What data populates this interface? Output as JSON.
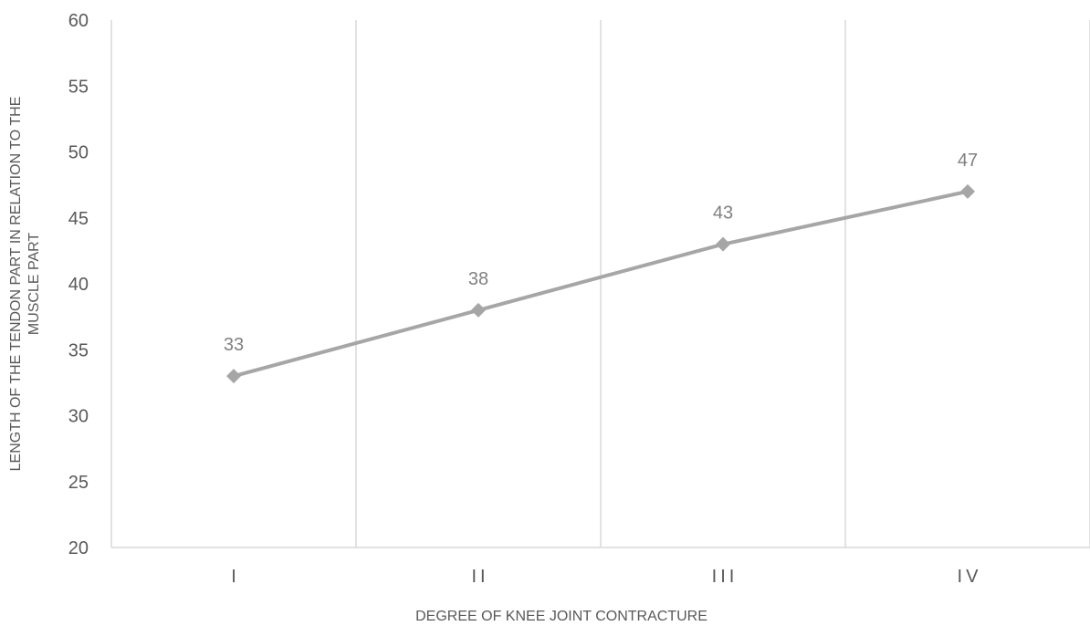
{
  "chart_data": {
    "type": "line",
    "categories": [
      "I",
      "II",
      "III",
      "IV"
    ],
    "series": [
      {
        "values": [
          33,
          38,
          43,
          47
        ]
      }
    ],
    "data_labels": [
      "33",
      "38",
      "43",
      "47"
    ],
    "xlabel": "DEGREE OF KNEE JOINT CONTRACTURE",
    "ylabel": "LENGTH OF THE TENDON PART IN RELATION TO THE MUSCLE PART",
    "ylim": [
      20,
      60
    ],
    "yticks": [
      20,
      25,
      30,
      35,
      40,
      45,
      50,
      55,
      60
    ],
    "grid": "vertical",
    "legend": "none",
    "colors": {
      "series": "#a6a6a6",
      "grid": "#d9d9d9",
      "axis": "#d9d9d9",
      "text": "#595959",
      "data_label": "#808080"
    }
  }
}
